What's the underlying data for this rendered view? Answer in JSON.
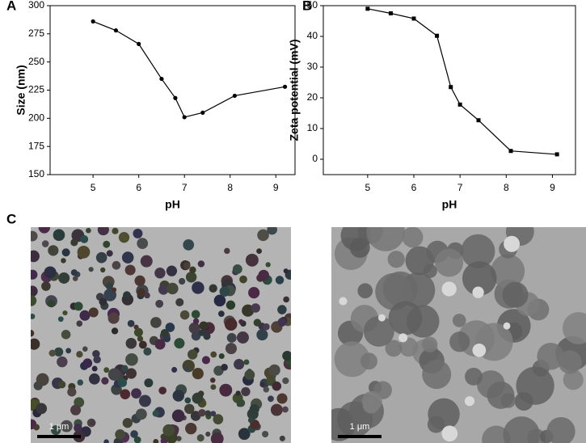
{
  "chart_data": [
    {
      "type": "line",
      "marker": "circle",
      "color": "#000000",
      "x_label": "pH",
      "y_label": "Size (nm)",
      "x": [
        5,
        5.5,
        6,
        6.5,
        6.8,
        7,
        7.4,
        8.1,
        9.2
      ],
      "values": [
        286,
        278,
        266,
        235,
        218,
        201,
        205,
        220,
        228
      ],
      "xlim": [
        4.06,
        9.42
      ],
      "ylim": [
        150,
        300
      ],
      "xticks": [
        5,
        6,
        7,
        8,
        9
      ],
      "yticks": [
        150,
        175,
        200,
        225,
        250,
        275,
        300
      ]
    },
    {
      "type": "line",
      "marker": "square",
      "color": "#000000",
      "x_label": "pH",
      "y_label": "Zeta potential (mV)",
      "x": [
        5,
        5.5,
        6,
        6.5,
        6.8,
        7,
        7.4,
        8.1,
        9.1
      ],
      "values": [
        49,
        47.5,
        45.8,
        40.2,
        23.5,
        17.8,
        12.7,
        2.7,
        1.6
      ],
      "xlim": [
        4.04,
        9.5
      ],
      "ylim": [
        -5,
        50
      ],
      "xticks": [
        5,
        6,
        7,
        8,
        9
      ],
      "yticks": [
        0,
        10,
        20,
        30,
        40,
        50
      ]
    }
  ],
  "panel_labels": [
    "A",
    "B",
    "C"
  ],
  "images": [
    {
      "scale_bar": "1 μm"
    },
    {
      "scale_bar": "1 μm"
    }
  ]
}
